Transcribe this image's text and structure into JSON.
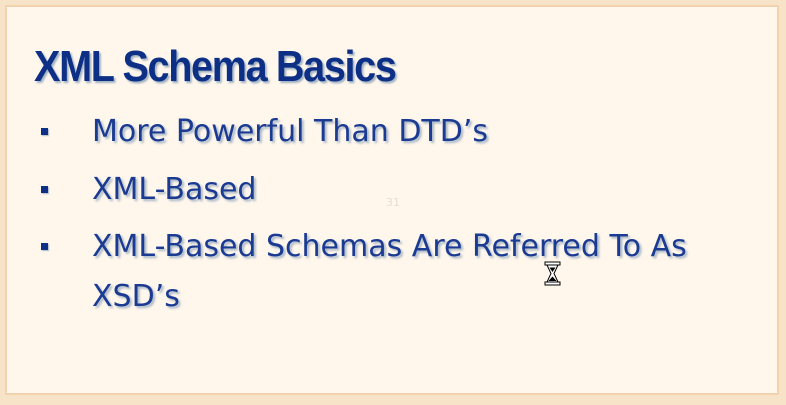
{
  "slide": {
    "title": "XML Schema Basics",
    "bullets": [
      {
        "text": "More Powerful Than DTD’s"
      },
      {
        "text": "XML-Based"
      },
      {
        "text": "XML-Based Schemas Are Referred To As XSD’s"
      }
    ],
    "ghost_text": "31"
  },
  "colors": {
    "page_background": "#f6e3c8",
    "slide_background": "#fff7ec",
    "slide_border": "#f3d3ad",
    "title": "#0d2f86",
    "bullet_text": "#1b3a92",
    "bullet_marker": "#0d2f86"
  },
  "cursor": {
    "icon": "hourglass-icon"
  }
}
